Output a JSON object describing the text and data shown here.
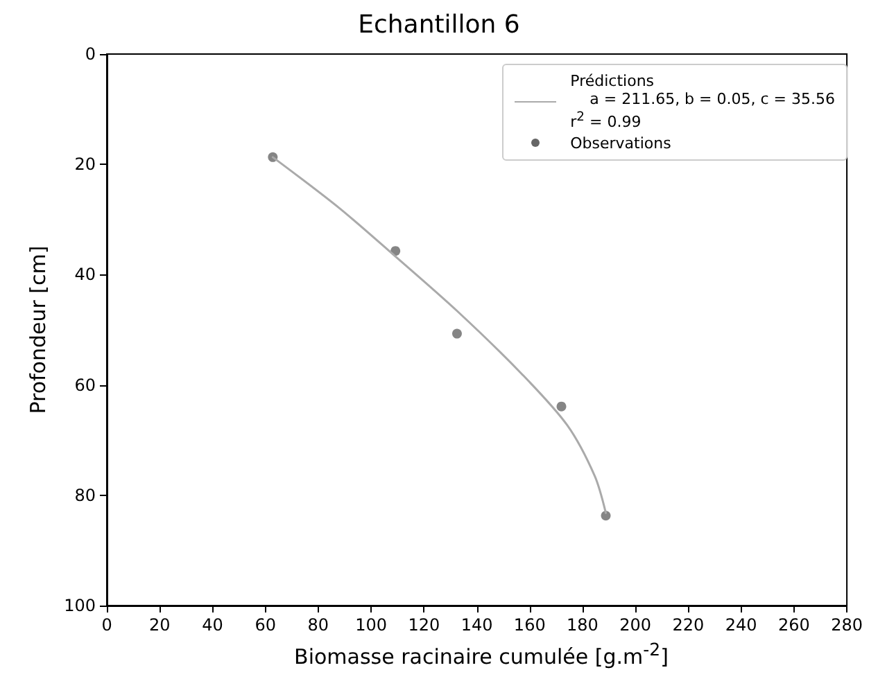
{
  "chart_data": {
    "type": "scatter",
    "title": "Echantillon 6",
    "xlabel": "Biomasse racinaire cumulée [g.m$^{-2}$]",
    "ylabel": "Profondeur [cm]",
    "xlim": [
      0,
      280
    ],
    "xticks": [
      0,
      20,
      40,
      60,
      80,
      100,
      120,
      140,
      160,
      180,
      200,
      220,
      240,
      260,
      280
    ],
    "ylim": [
      100,
      0
    ],
    "yticks": [
      0,
      20,
      40,
      60,
      80,
      100
    ],
    "legend": "top right",
    "grid": false,
    "series": [
      {
        "name": "Prédictions\n    a = 211.65, b = 0.05, c = 35.56\nr$^{2}$ = 0.99",
        "type": "line",
        "color": "#aaaaaa",
        "marker": "none",
        "line_style": "solid",
        "x": [
          62.8,
          87.9,
          109.2,
          132.8,
          157,
          174.2,
          184.6,
          188.8
        ],
        "values": [
          18.7,
          27.9,
          36.7,
          46.7,
          58,
          67.3,
          76.5,
          83.2
        ]
      },
      {
        "name": "Observations",
        "color": "#666666",
        "marker": "circle",
        "x": [
          62.8,
          109.2,
          132.5,
          172,
          188.8
        ],
        "values": [
          18.7,
          35.7,
          50.7,
          63.9,
          83.7
        ]
      }
    ]
  }
}
